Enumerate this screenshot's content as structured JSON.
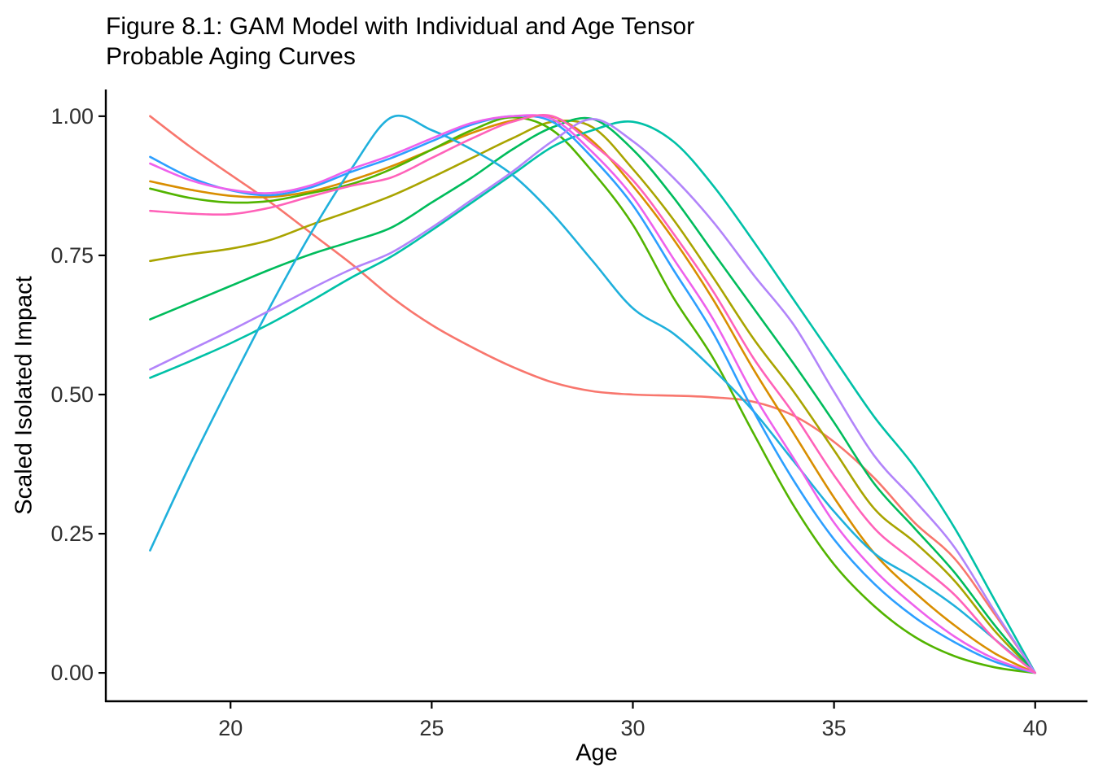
{
  "figure": {
    "title_line1": "Figure 8.1: GAM Model with Individual and Age Tensor",
    "title_line2": "Probable Aging Curves",
    "background_color": "#FFFFFF",
    "axis_color": "#000000",
    "tick_text_color": "#303030"
  },
  "chart_data": {
    "type": "line",
    "title": "Figure 8.1: GAM Model with Individual and Age Tensor Probable Aging Curves",
    "xlabel": "Age",
    "ylabel": "Scaled Isolated Impact",
    "grid": false,
    "legend": "none",
    "xlim": [
      16.9,
      41.3
    ],
    "ylim": [
      -0.051,
      1.048
    ],
    "x_ticks": [
      20,
      25,
      30,
      35,
      40
    ],
    "x_tick_labels": [
      "20",
      "25",
      "30",
      "35",
      "40"
    ],
    "y_ticks": [
      0.0,
      0.25,
      0.5,
      0.75,
      1.0
    ],
    "y_tick_labels": [
      "0.00",
      "0.25",
      "0.50",
      "0.75",
      "1.00"
    ],
    "ages": [
      18,
      19,
      20,
      21,
      22,
      23,
      24,
      25,
      26,
      27,
      28,
      29,
      30,
      31,
      32,
      33,
      34,
      35,
      36,
      37,
      38,
      39,
      40
    ],
    "series": [
      {
        "name": "red",
        "color": "#F8766D",
        "values": [
          1.0,
          0.945,
          0.895,
          0.845,
          0.79,
          0.735,
          0.675,
          0.625,
          0.585,
          0.55,
          0.522,
          0.506,
          0.5,
          0.498,
          0.495,
          0.487,
          0.462,
          0.415,
          0.35,
          0.27,
          0.205,
          0.105,
          0.0
        ]
      },
      {
        "name": "orange",
        "color": "#D98E00",
        "values": [
          0.883,
          0.868,
          0.857,
          0.855,
          0.865,
          0.885,
          0.91,
          0.94,
          0.97,
          0.992,
          0.999,
          0.955,
          0.875,
          0.78,
          0.67,
          0.545,
          0.43,
          0.315,
          0.215,
          0.145,
          0.085,
          0.035,
          0.0
        ]
      },
      {
        "name": "olive",
        "color": "#A9A400",
        "values": [
          0.74,
          0.752,
          0.762,
          0.778,
          0.805,
          0.83,
          0.857,
          0.89,
          0.925,
          0.96,
          0.99,
          0.98,
          0.905,
          0.815,
          0.71,
          0.6,
          0.505,
          0.4,
          0.295,
          0.235,
          0.165,
          0.075,
          0.0
        ]
      },
      {
        "name": "green",
        "color": "#52B400",
        "values": [
          0.87,
          0.853,
          0.845,
          0.848,
          0.862,
          0.878,
          0.905,
          0.94,
          0.975,
          0.998,
          0.975,
          0.9,
          0.805,
          0.675,
          0.565,
          0.43,
          0.3,
          0.195,
          0.12,
          0.065,
          0.03,
          0.01,
          0.0
        ]
      },
      {
        "name": "emerald",
        "color": "#00BC5C",
        "values": [
          0.635,
          0.665,
          0.695,
          0.725,
          0.752,
          0.775,
          0.8,
          0.845,
          0.89,
          0.94,
          0.98,
          0.995,
          0.94,
          0.855,
          0.755,
          0.655,
          0.555,
          0.45,
          0.34,
          0.26,
          0.18,
          0.085,
          0.0
        ]
      },
      {
        "name": "teal",
        "color": "#00C1A7",
        "values": [
          0.53,
          0.56,
          0.592,
          0.628,
          0.668,
          0.71,
          0.748,
          0.795,
          0.845,
          0.895,
          0.945,
          0.975,
          0.99,
          0.955,
          0.875,
          0.775,
          0.67,
          0.565,
          0.46,
          0.37,
          0.26,
          0.13,
          0.0
        ]
      },
      {
        "name": "cyan",
        "color": "#1FB0DC",
        "values": [
          0.22,
          0.375,
          0.52,
          0.66,
          0.79,
          0.905,
          0.998,
          0.975,
          0.94,
          0.895,
          0.825,
          0.74,
          0.655,
          0.61,
          0.545,
          0.47,
          0.38,
          0.29,
          0.215,
          0.17,
          0.12,
          0.06,
          0.0
        ]
      },
      {
        "name": "blue",
        "color": "#2D9FFF",
        "values": [
          0.927,
          0.89,
          0.867,
          0.858,
          0.872,
          0.9,
          0.925,
          0.955,
          0.985,
          1.0,
          0.99,
          0.925,
          0.84,
          0.725,
          0.61,
          0.47,
          0.345,
          0.24,
          0.16,
          0.1,
          0.055,
          0.02,
          0.0
        ]
      },
      {
        "name": "purple",
        "color": "#B284FA",
        "values": [
          0.545,
          0.58,
          0.615,
          0.652,
          0.69,
          0.725,
          0.755,
          0.8,
          0.85,
          0.9,
          0.955,
          0.995,
          0.955,
          0.89,
          0.81,
          0.715,
          0.625,
          0.505,
          0.39,
          0.31,
          0.225,
          0.11,
          0.0
        ]
      },
      {
        "name": "magenta",
        "color": "#EE61EC",
        "values": [
          0.915,
          0.885,
          0.868,
          0.862,
          0.876,
          0.905,
          0.93,
          0.96,
          0.988,
          1.0,
          0.995,
          0.935,
          0.855,
          0.745,
          0.635,
          0.5,
          0.385,
          0.27,
          0.185,
          0.12,
          0.065,
          0.025,
          0.0
        ]
      },
      {
        "name": "pink",
        "color": "#FF62B9",
        "values": [
          0.83,
          0.825,
          0.824,
          0.836,
          0.856,
          0.875,
          0.89,
          0.925,
          0.96,
          0.99,
          1.0,
          0.95,
          0.885,
          0.79,
          0.685,
          0.565,
          0.465,
          0.355,
          0.26,
          0.2,
          0.14,
          0.06,
          0.0
        ]
      }
    ]
  }
}
